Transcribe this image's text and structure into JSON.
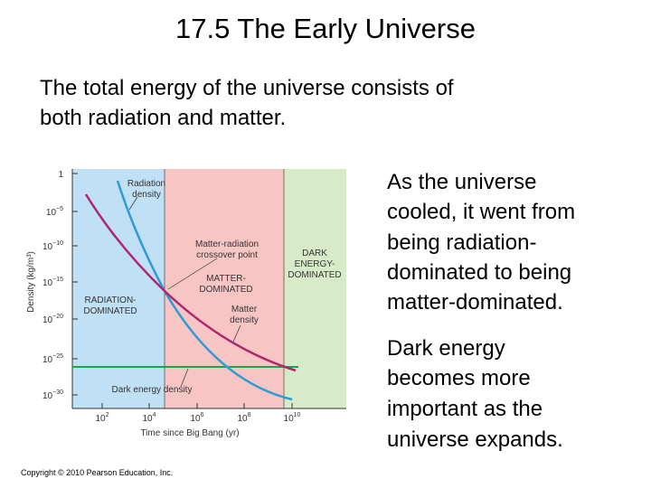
{
  "title": "17.5 The Early Universe",
  "intro": [
    "The total energy of the universe consists of",
    "both radiation and matter."
  ],
  "side": [
    [
      "As the universe",
      "cooled, it went from",
      "being radiation-",
      "dominated to being",
      "matter-dominated."
    ],
    [
      "Dark energy",
      "becomes more",
      "important as the",
      "universe expands."
    ]
  ],
  "figure": {
    "y_label": "Density (kg/m³)",
    "x_label": "Time since Big Bang (yr)",
    "yticks": [
      {
        "text": "1"
      },
      {
        "base": "10",
        "exp": "−5"
      },
      {
        "base": "10",
        "exp": "−10"
      },
      {
        "base": "10",
        "exp": "−15"
      },
      {
        "base": "10",
        "exp": "−20"
      },
      {
        "base": "10",
        "exp": "−25"
      },
      {
        "base": "10",
        "exp": "−30"
      }
    ],
    "xticks": [
      {
        "base": "10",
        "exp": "2"
      },
      {
        "base": "10",
        "exp": "4"
      },
      {
        "base": "10",
        "exp": "6"
      },
      {
        "base": "10",
        "exp": "8"
      },
      {
        "base": "10",
        "exp": "10"
      }
    ],
    "labels": {
      "radiation_density": [
        "Radiation",
        "density"
      ],
      "crossover": [
        "Matter-radiation",
        "crossover point"
      ],
      "matter_dominated": [
        "MATTER-",
        "DOMINATED"
      ],
      "dark_energy_dominated": [
        "DARK",
        "ENERGY-",
        "DOMINATED"
      ],
      "radiation_dominated": [
        "RADIATION-",
        "DOMINATED"
      ],
      "matter_density": [
        "Matter",
        "density"
      ],
      "dark_energy_density": [
        "Dark energy density"
      ]
    }
  },
  "copyright": "Copyright © 2010 Pearson Education, Inc."
}
